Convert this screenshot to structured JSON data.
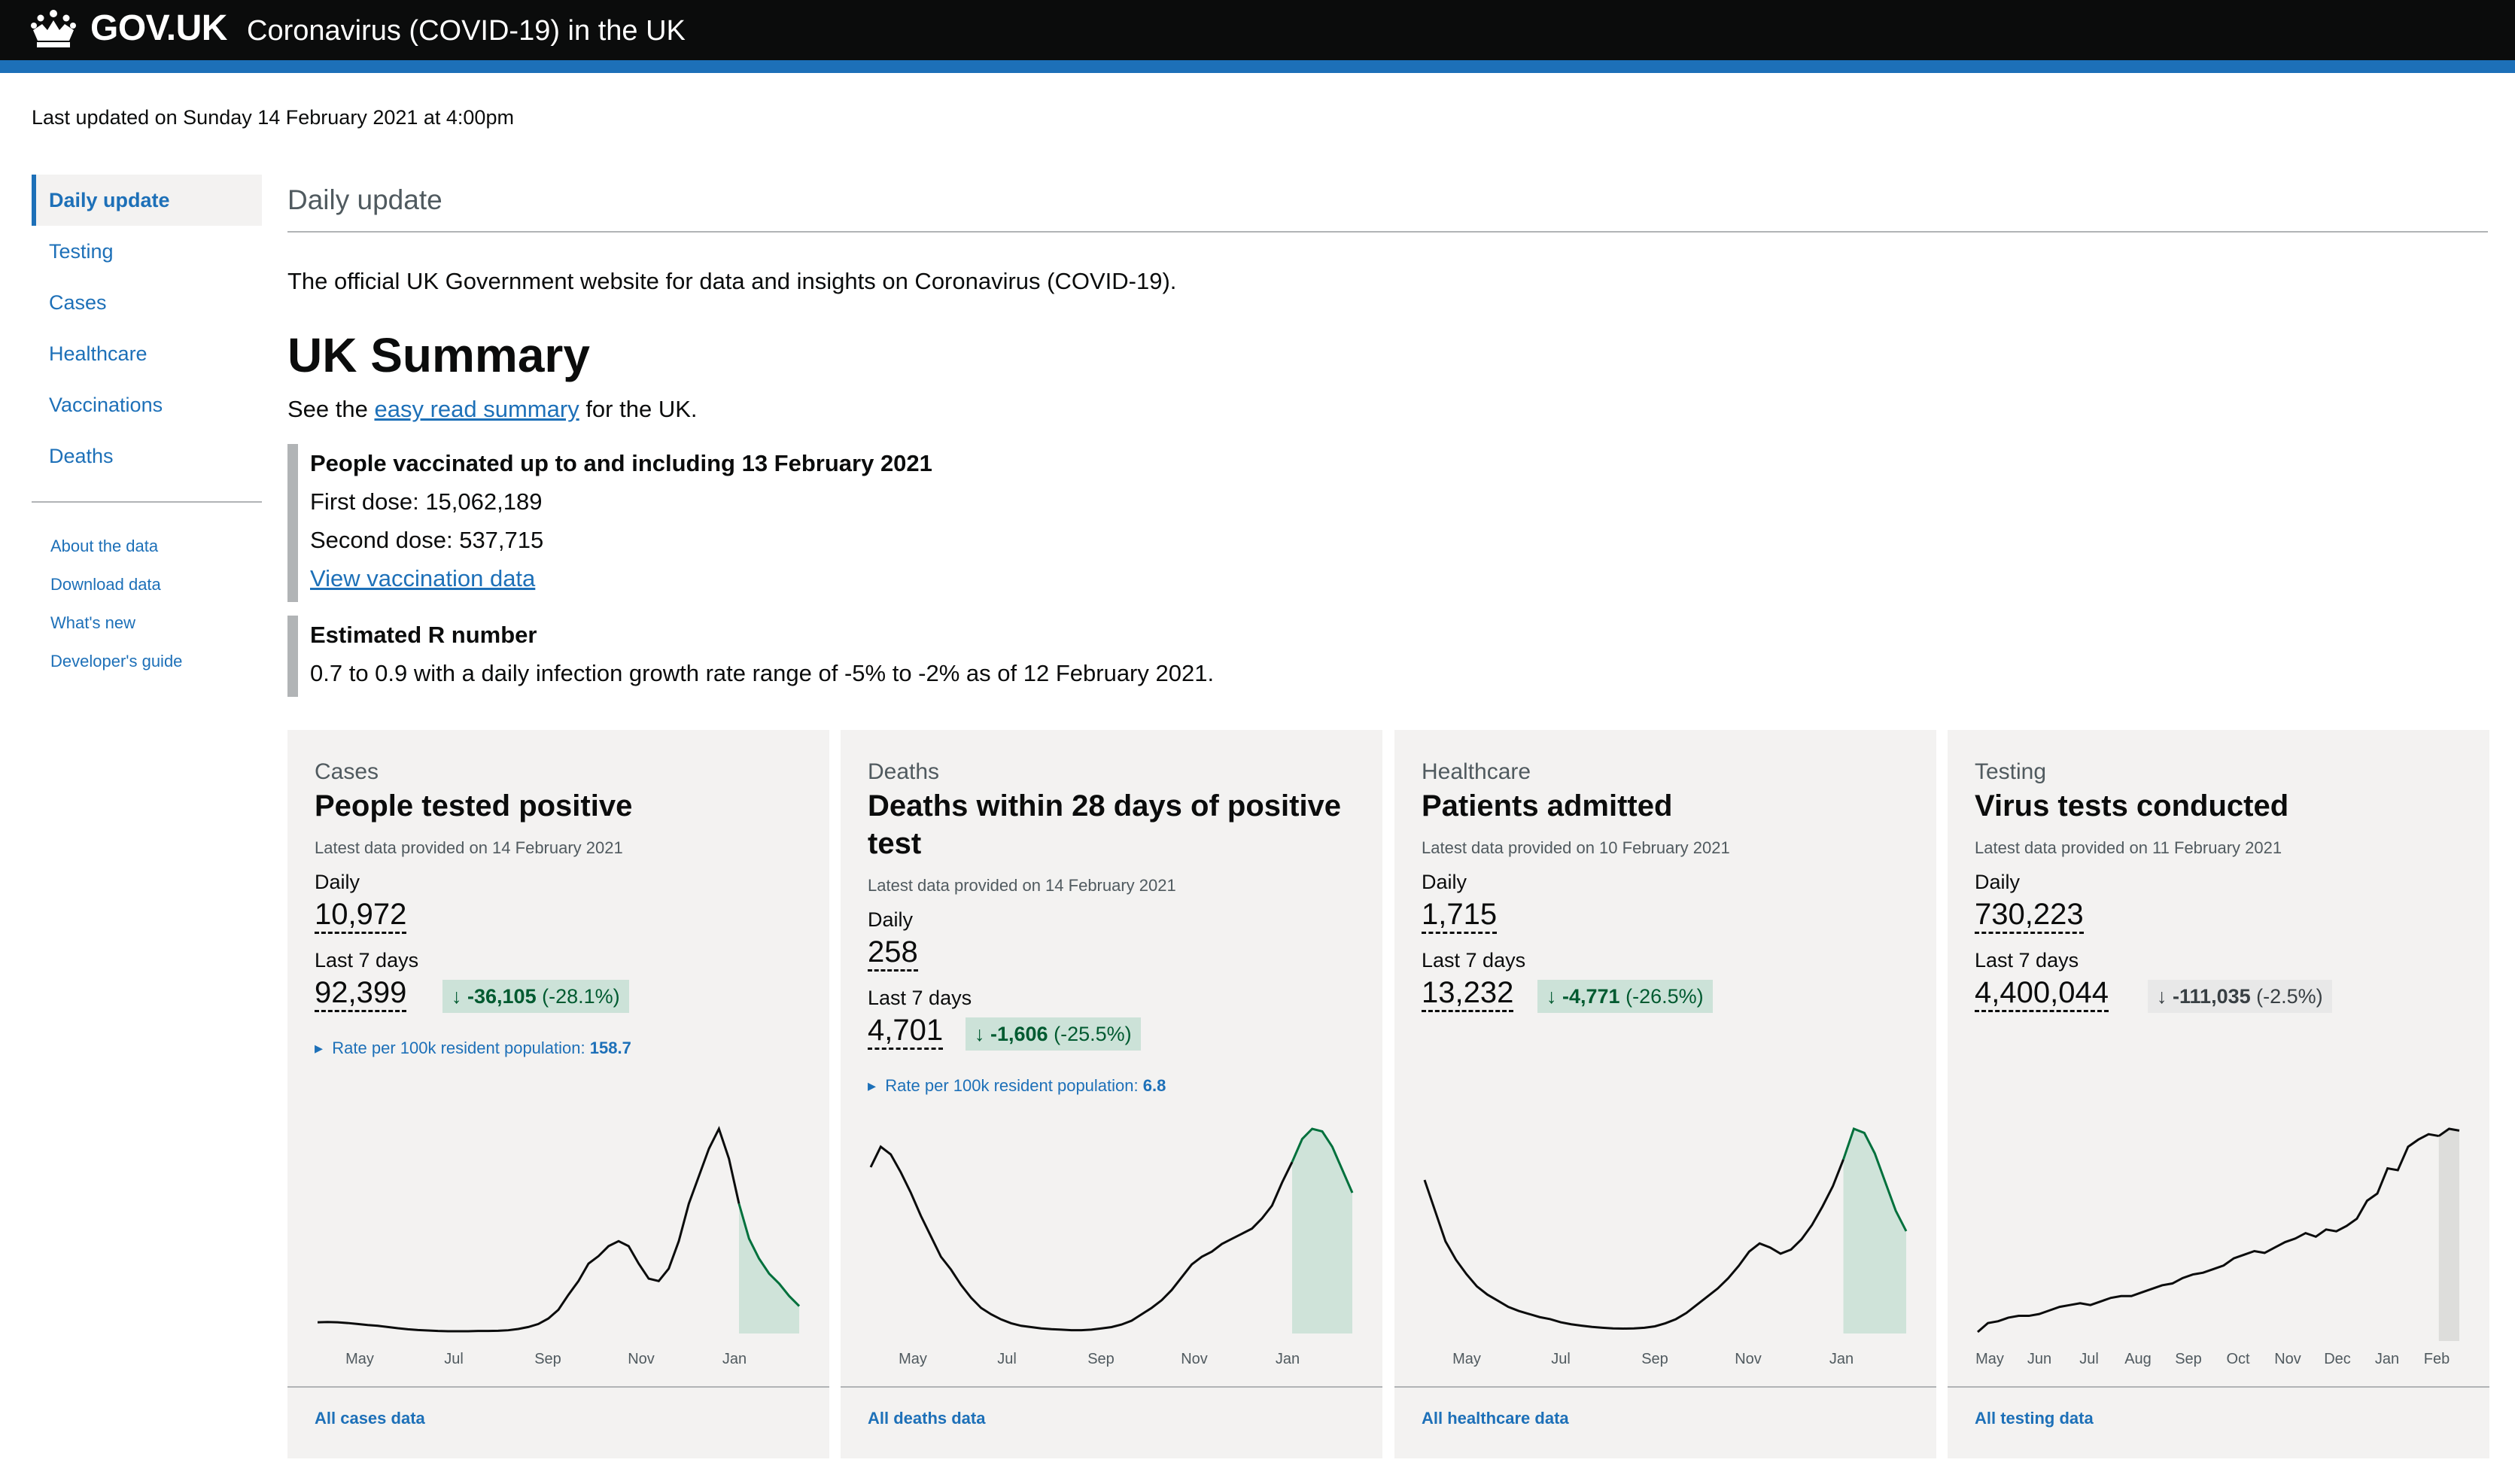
{
  "header": {
    "brand": "GOV.UK",
    "service": "Coronavirus (COVID-19) in the UK",
    "colors": {
      "header_bg": "#0b0c0c",
      "accent": "#1d70b8"
    }
  },
  "last_updated": "Last updated on Sunday 14 February 2021 at 4:00pm",
  "sidebar": {
    "items": [
      {
        "label": "Daily update",
        "active": true
      },
      {
        "label": "Testing"
      },
      {
        "label": "Cases"
      },
      {
        "label": "Healthcare"
      },
      {
        "label": "Vaccinations"
      },
      {
        "label": "Deaths"
      }
    ],
    "secondary": [
      {
        "label": "About the data"
      },
      {
        "label": "Download data"
      },
      {
        "label": "What's new"
      },
      {
        "label": "Developer's guide"
      }
    ]
  },
  "main": {
    "page_title": "Daily update",
    "intro": "The official UK Government website for data and insights on Coronavirus (COVID-19).",
    "summary_heading": "UK Summary",
    "easy_read": {
      "before": "See the ",
      "link": "easy read summary",
      "after": " for the UK."
    },
    "vaccination": {
      "title": "People vaccinated up to and including 13 February 2021",
      "first_dose": "First dose: 15,062,189",
      "second_dose": "Second dose: 537,715",
      "link": "View vaccination data"
    },
    "r_number": {
      "title": "Estimated R number",
      "text": "0.7 to 0.9 with a daily infection growth rate range of -5% to -2% as of 12 February 2021."
    }
  },
  "cards": [
    {
      "category": "Cases",
      "title": "People tested positive",
      "latest": "Latest data provided on 14 February 2021",
      "daily_label": "Daily",
      "daily_value": "10,972",
      "week_label": "Last 7 days",
      "week_value": "92,399",
      "change_arrow": "↓",
      "change_value": "-36,105",
      "change_pct": "(-28.1%)",
      "rate_label": "Rate per 100k resident population:",
      "rate_value": "158.7",
      "link": "All cases data",
      "chart_data": {
        "type": "line",
        "x_ticks": [
          "May",
          "Jul",
          "Sep",
          "Nov",
          "Jan"
        ],
        "series": [
          {
            "values": [
              4.5,
              4.6,
              4.5,
              4.2,
              3.8,
              3.4,
              3.1,
              2.6,
              2.1,
              1.7,
              1.4,
              1.2,
              1.0,
              0.9,
              0.9,
              0.9,
              1.0,
              1.0,
              1.1,
              1.3,
              1.8,
              2.6,
              3.8,
              6.0,
              9.5,
              15.5,
              21,
              28,
              31,
              35,
              37,
              35,
              28,
              22,
              21,
              26,
              37,
              52,
              63,
              74,
              82,
              70,
              52,
              38,
              30,
              24,
              20,
              15,
              11
            ]
          }
        ],
        "highlight_last_points": 7
      }
    },
    {
      "category": "Deaths",
      "title": "Deaths within 28 days of positive test",
      "latest": "Latest data provided on 14 February 2021",
      "daily_label": "Daily",
      "daily_value": "258",
      "week_label": "Last 7 days",
      "week_value": "4,701",
      "change_arrow": "↓",
      "change_value": "-1,606",
      "change_pct": "(-25.5%)",
      "rate_label": "Rate per 100k resident population:",
      "rate_value": "6.8",
      "link": "All deaths data",
      "chart_data": {
        "type": "line",
        "x_ticks": [
          "May",
          "Jul",
          "Sep",
          "Nov",
          "Jan"
        ],
        "series": [
          {
            "values": [
              65,
              73,
              70,
              63,
              55,
              46,
              38,
              30,
              25,
              19,
              14,
              10,
              7.5,
              5.5,
              4,
              3,
              2.5,
              2,
              1.7,
              1.5,
              1.3,
              1.3,
              1.5,
              2,
              2.5,
              3.5,
              5,
              7.5,
              10,
              13,
              17,
              22,
              27,
              30,
              32,
              35,
              37,
              39,
              41,
              45,
              50,
              59,
              67,
              76,
              80,
              79,
              73,
              64,
              55
            ]
          }
        ],
        "highlight_last_points": 7
      }
    },
    {
      "category": "Healthcare",
      "title": "Patients admitted",
      "latest": "Latest data provided on 10 February 2021",
      "daily_label": "Daily",
      "daily_value": "1,715",
      "week_label": "Last 7 days",
      "week_value": "13,232",
      "change_arrow": "↓",
      "change_value": "-4,771",
      "change_pct": "(-26.5%)",
      "link": "All healthcare data",
      "chart_data": {
        "type": "line",
        "x_ticks": [
          "May",
          "Jul",
          "Sep",
          "Nov",
          "Jan"
        ],
        "series": [
          {
            "values": [
              75,
              60,
              45,
              36,
              29,
              23,
              19,
              16,
              13,
              11,
              9.5,
              8,
              7,
              5.5,
              4.5,
              3.8,
              3.2,
              2.8,
              2.5,
              2.4,
              2.5,
              2.8,
              3.5,
              5,
              7,
              10,
              14,
              18,
              22,
              27,
              33,
              40,
              44,
              42,
              39,
              41,
              46,
              53,
              62,
              72,
              85,
              100,
              98,
              88,
              74,
              60,
              50
            ]
          }
        ],
        "highlight_last_points": 7
      }
    },
    {
      "category": "Testing",
      "title": "Virus tests conducted",
      "latest": "Latest data provided on 11 February 2021",
      "daily_label": "Daily",
      "daily_value": "730,223",
      "week_label": "Last 7 days",
      "week_value": "4,400,044",
      "change_arrow": "↓",
      "change_value": "-111,035",
      "change_pct": "(-2.5%)",
      "link": "All testing data",
      "chart_data": {
        "type": "line",
        "x_ticks": [
          "May",
          "Jun",
          "Jul",
          "Aug",
          "Sep",
          "Oct",
          "Nov",
          "Dec",
          "Jan",
          "Feb"
        ],
        "series": [
          {
            "values": [
              5,
              10,
              11,
              13,
              14,
              14,
              15,
              17,
              19,
              20,
              21,
              20,
              22,
              24,
              25,
              25,
              27,
              29,
              31,
              32,
              35,
              37,
              38,
              40,
              42,
              46,
              48,
              50,
              49,
              52,
              55,
              57,
              60,
              58,
              62,
              61,
              64,
              68,
              78,
              82,
              96,
              95,
              108,
              112,
              115,
              114,
              118,
              117
            ]
          }
        ],
        "highlight_last_points": 3
      }
    }
  ]
}
